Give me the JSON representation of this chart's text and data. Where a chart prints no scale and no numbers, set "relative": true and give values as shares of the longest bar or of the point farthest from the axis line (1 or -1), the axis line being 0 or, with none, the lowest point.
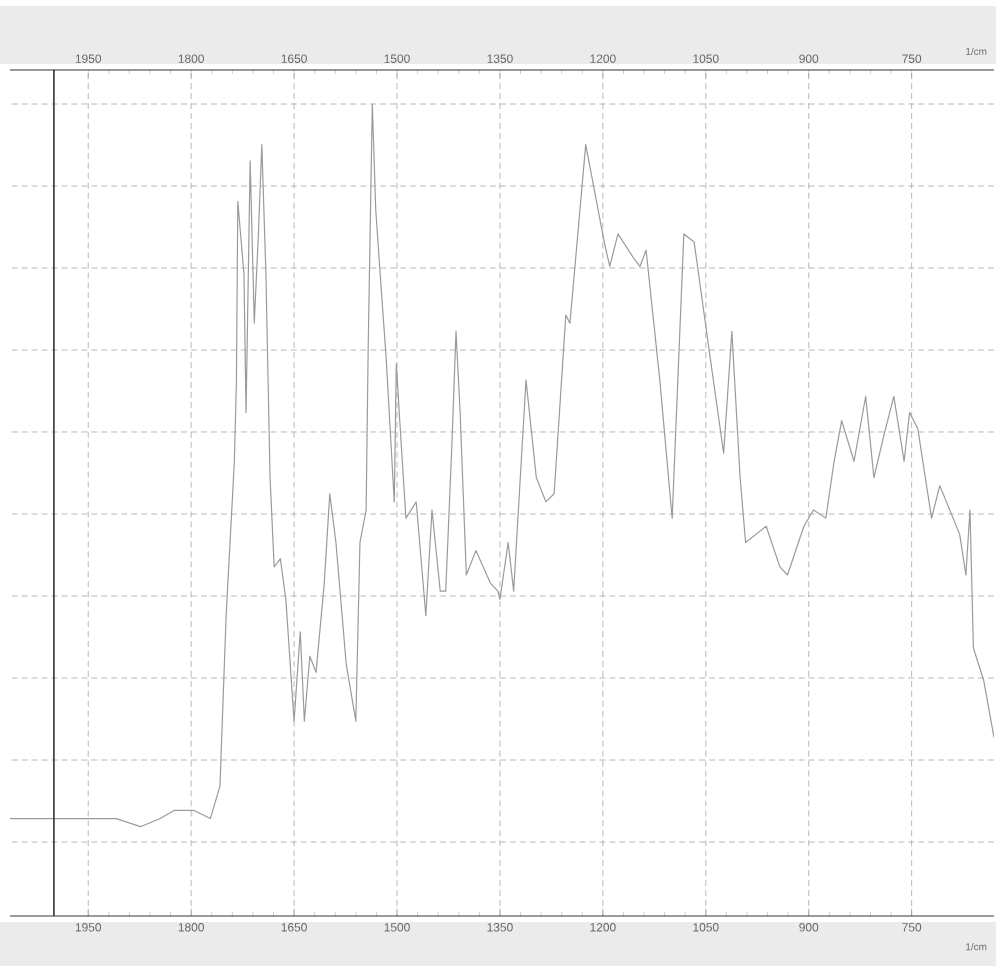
{
  "chart_data": {
    "type": "line",
    "relative": true,
    "xlabel": "1/cm",
    "x2label": "1/cm",
    "xlim": [
      2064,
      630
    ],
    "xticks": [
      1950,
      1800,
      1650,
      1500,
      1350,
      1200,
      1050,
      900,
      750
    ],
    "x2lim": [
      2064,
      630
    ],
    "x2ticks": [
      1950,
      1800,
      1650,
      1500,
      1350,
      1200,
      1050,
      900,
      750
    ],
    "grid": true,
    "marker": "none",
    "line_style": "solid",
    "ref_lines": [
      {
        "axis": "x",
        "value": 2000,
        "color": "#333333"
      }
    ],
    "series": [
      {
        "color": "#9a9a9a",
        "x": [
          2064,
          2000,
          1953,
          1909,
          1874,
          1845,
          1825,
          1796,
          1772,
          1758,
          1749,
          1737,
          1734,
          1732,
          1723,
          1720,
          1714,
          1708,
          1702,
          1697,
          1691,
          1685,
          1679,
          1670,
          1662,
          1650,
          1641,
          1635,
          1627,
          1618,
          1606,
          1598,
          1589,
          1574,
          1560,
          1554,
          1545,
          1542,
          1536,
          1531,
          1522,
          1516,
          1504,
          1501,
          1496,
          1487,
          1472,
          1458,
          1449,
          1437,
          1429,
          1420,
          1414,
          1408,
          1399,
          1385,
          1364,
          1353,
          1350,
          1338,
          1330,
          1312,
          1297,
          1283,
          1271,
          1254,
          1248,
          1225,
          1198,
          1190,
          1178,
          1155,
          1146,
          1137,
          1117,
          1099,
          1082,
          1067,
          1044,
          1024,
          1012,
          1000,
          992,
          977,
          962,
          942,
          931,
          907,
          893,
          875,
          863,
          852,
          834,
          817,
          805,
          791,
          776,
          761,
          753,
          741,
          721,
          709,
          680,
          671,
          665,
          660,
          645,
          630
        ],
        "values": [
          0.12,
          0.12,
          0.12,
          0.12,
          0.11,
          0.12,
          0.13,
          0.13,
          0.12,
          0.16,
          0.37,
          0.56,
          0.66,
          0.88,
          0.79,
          0.62,
          0.93,
          0.73,
          0.84,
          0.95,
          0.79,
          0.54,
          0.43,
          0.44,
          0.39,
          0.24,
          0.35,
          0.24,
          0.32,
          0.3,
          0.41,
          0.52,
          0.46,
          0.31,
          0.24,
          0.46,
          0.5,
          0.7,
          1,
          0.87,
          0.76,
          0.69,
          0.51,
          0.68,
          0.61,
          0.49,
          0.51,
          0.37,
          0.5,
          0.4,
          0.4,
          0.58,
          0.72,
          0.62,
          0.42,
          0.45,
          0.41,
          0.4,
          0.39,
          0.46,
          0.4,
          0.66,
          0.54,
          0.51,
          0.52,
          0.74,
          0.73,
          0.95,
          0.83,
          0.8,
          0.84,
          0.81,
          0.8,
          0.82,
          0.66,
          0.49,
          0.84,
          0.83,
          0.69,
          0.57,
          0.72,
          0.54,
          0.46,
          0.47,
          0.48,
          0.43,
          0.42,
          0.48,
          0.5,
          0.49,
          0.56,
          0.61,
          0.56,
          0.64,
          0.54,
          0.59,
          0.64,
          0.56,
          0.62,
          0.6,
          0.49,
          0.53,
          0.47,
          0.42,
          0.5,
          0.33,
          0.29,
          0.22
        ]
      }
    ]
  }
}
